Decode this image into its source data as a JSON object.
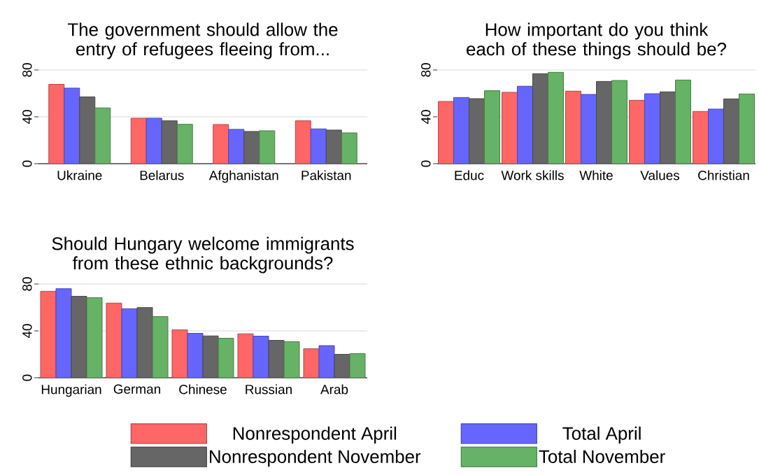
{
  "chart_data": [
    {
      "type": "bar",
      "title": "The government should allow the entry of refugees fleeing from...",
      "categories": [
        "Ukraine",
        "Belarus",
        "Afghanistan",
        "Pakistan"
      ],
      "ylim": [
        0,
        80
      ],
      "yticks": [
        0,
        40,
        80
      ],
      "grid": "y",
      "series": [
        {
          "color": "#ff6666",
          "values": [
            67.7,
            38.8,
            33.4,
            36.6
          ]
        },
        {
          "color": "#6666ff",
          "values": [
            64.5,
            38.8,
            29.3,
            29.7
          ]
        },
        {
          "color": "#666666",
          "values": [
            57,
            36.6,
            27.5,
            28.7
          ]
        },
        {
          "color": "#66b266",
          "values": [
            47.6,
            33.6,
            28.1,
            26.3
          ]
        }
      ]
    },
    {
      "type": "bar",
      "title": "How important do you think each of these things should be?",
      "categories": [
        "Educ",
        "Work skills",
        "White",
        "Values",
        "Christian"
      ],
      "ylim": [
        0,
        80
      ],
      "yticks": [
        0,
        40,
        80
      ],
      "grid": "y",
      "series": [
        {
          "color": "#ff6666",
          "values": [
            53.1,
            60.9,
            61.9,
            54.1,
            44.6
          ]
        },
        {
          "color": "#6666ff",
          "values": [
            56.5,
            66.1,
            59.1,
            59.7,
            46.6
          ]
        },
        {
          "color": "#666666",
          "values": [
            55.5,
            76.8,
            70.2,
            61.3,
            55.3
          ]
        },
        {
          "color": "#66b266",
          "values": [
            62.3,
            78,
            71,
            71.4,
            59.5
          ]
        }
      ]
    },
    {
      "type": "bar",
      "title": "Should Hungary welcome immigrants from these ethnic backgrounds?",
      "categories": [
        "Hungarian",
        "German",
        "Chinese",
        "Russian",
        "Arab"
      ],
      "ylim": [
        0,
        80
      ],
      "yticks": [
        0,
        40,
        80
      ],
      "grid": "y",
      "legend": "bottom",
      "series": [
        {
          "name": "Nonrespondent April",
          "color": "#ff6666",
          "values": [
            73.8,
            63.7,
            40.9,
            37.5,
            24.8
          ]
        },
        {
          "name": "Total April",
          "color": "#6666ff",
          "values": [
            76,
            58.9,
            37.9,
            35.5,
            27.4
          ]
        },
        {
          "name": "Nonrespondent November",
          "color": "#666666",
          "values": [
            69.5,
            59.9,
            35.7,
            31.9,
            20
          ]
        },
        {
          "name": "Total November",
          "color": "#66b266",
          "values": [
            68.3,
            52.2,
            33.7,
            30.8,
            20.6
          ]
        }
      ]
    }
  ]
}
